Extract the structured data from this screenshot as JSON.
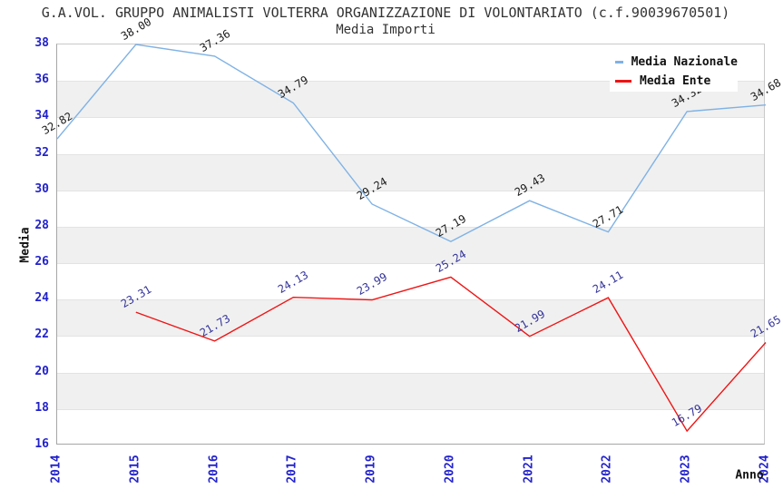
{
  "chart": {
    "title": "G.A.VOL. GRUPPO ANIMALISTI VOLTERRA ORGANIZZAZIONE DI VOLONTARIATO (c.f.90039670501)",
    "subtitle": "Media Importi"
  },
  "chart_data": {
    "type": "line",
    "x": [
      "2014",
      "2015",
      "2016",
      "2017",
      "2019",
      "2020",
      "2021",
      "2022",
      "2023",
      "2024"
    ],
    "series": [
      {
        "name": "Media Nazionale",
        "color": "#7fb2e5",
        "label_color": "#1a1a1a",
        "values": [
          32.82,
          38.0,
          37.36,
          34.79,
          29.24,
          27.19,
          29.43,
          27.71,
          34.32,
          34.68
        ]
      },
      {
        "name": "Media Ente",
        "color": "#ee1515",
        "label_color": "#333399",
        "values": [
          null,
          23.31,
          21.73,
          24.13,
          23.99,
          25.24,
          21.99,
          24.11,
          16.79,
          21.65
        ]
      }
    ],
    "xlabel": "Anno",
    "ylabel": "Media",
    "ylim": [
      16,
      38
    ],
    "ytick_step": 2,
    "legend_position": "top-right",
    "grid": "striped-horizontal-bands",
    "stripe_color": "#f0f0f0",
    "tick_label_color": "#2222cc"
  }
}
